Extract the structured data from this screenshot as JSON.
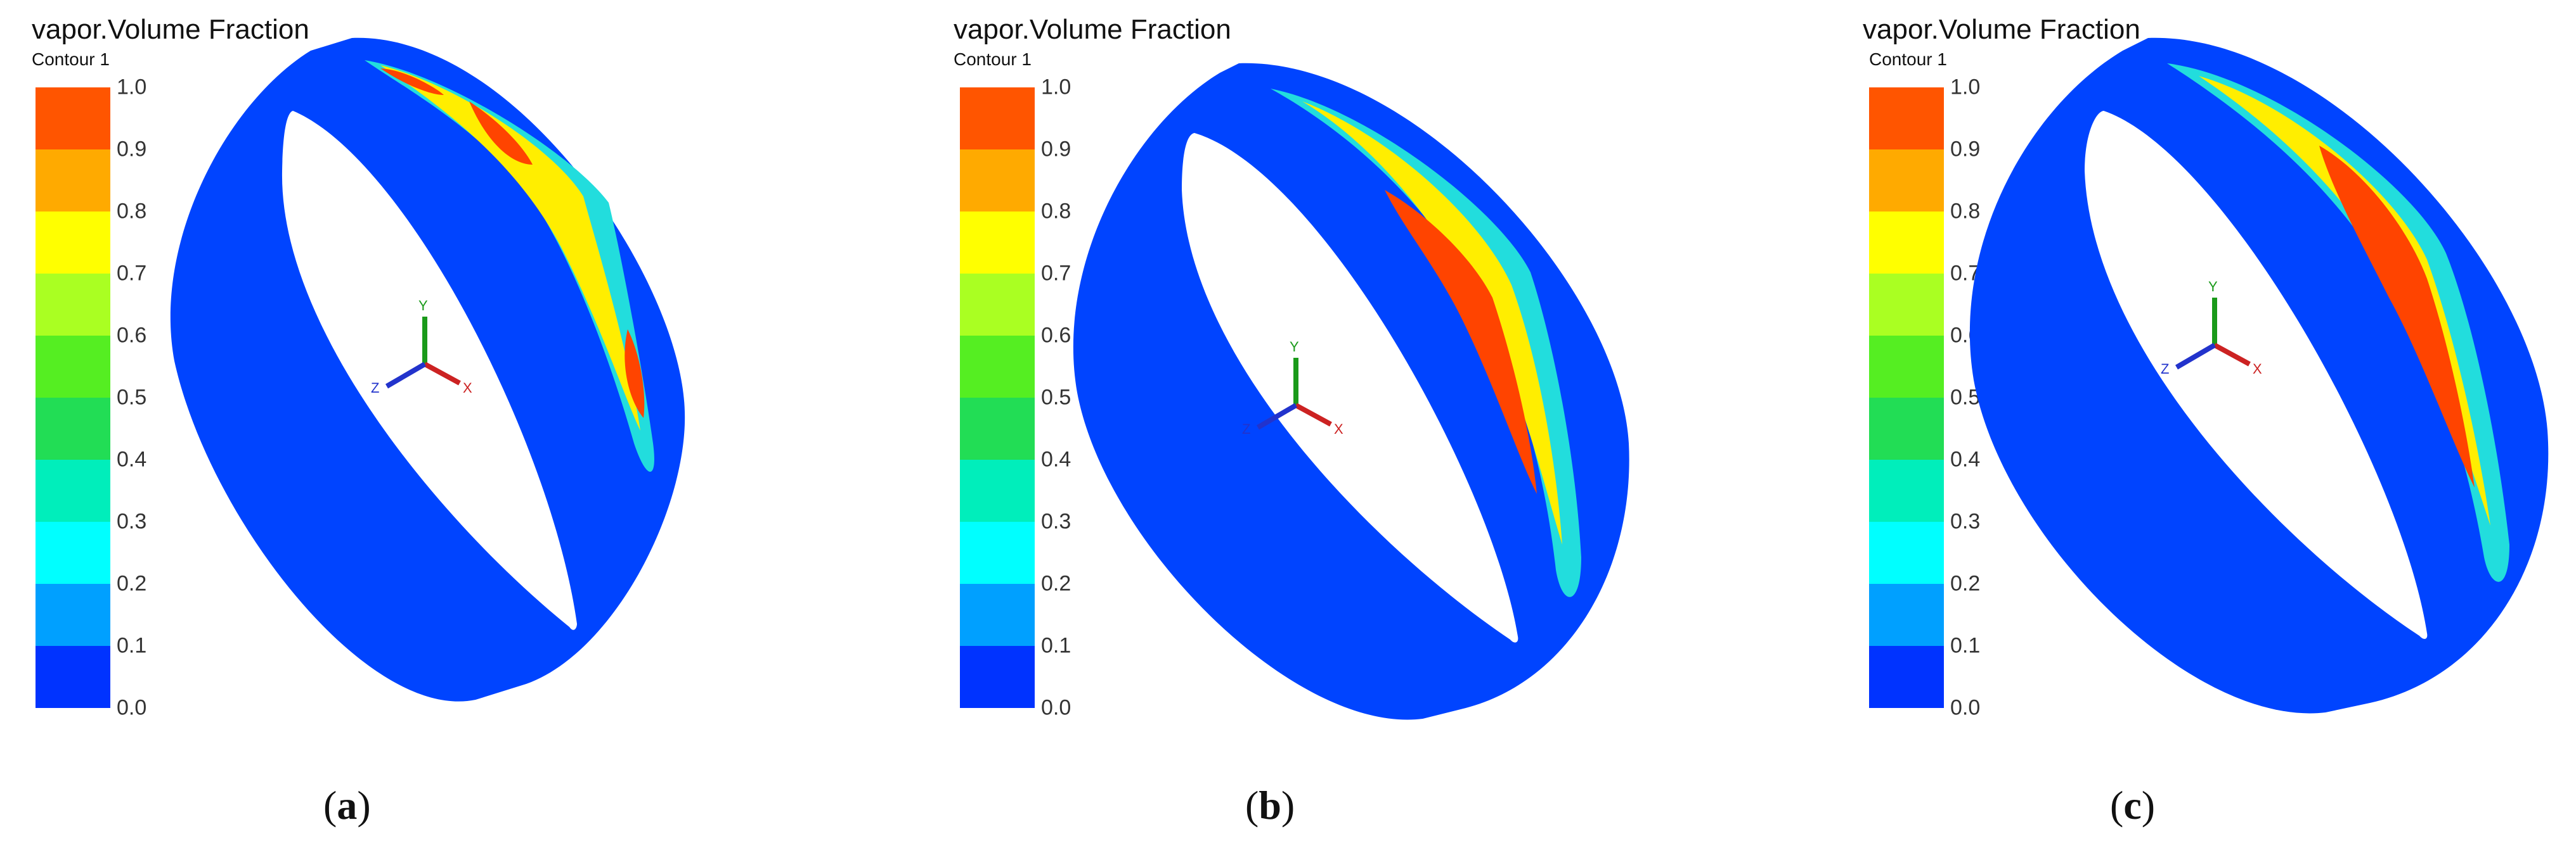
{
  "panels": [
    {
      "id": "a",
      "title": "vapor.Volume Fraction",
      "subtitle": "Contour 1",
      "caption_letter": "a"
    },
    {
      "id": "b",
      "title": "vapor.Volume Fraction",
      "subtitle": "Contour 1",
      "caption_letter": "b"
    },
    {
      "id": "c",
      "title": "vapor.Volume Fraction",
      "subtitle": "Contour 1",
      "caption_letter": "c"
    }
  ],
  "legend": {
    "ticks": [
      "1.0",
      "0.9",
      "0.8",
      "0.7",
      "0.6",
      "0.5",
      "0.4",
      "0.3",
      "0.2",
      "0.1",
      "0.0"
    ],
    "colors": [
      "#0033ff",
      "#00a0ff",
      "#00ffff",
      "#00eebb",
      "#22dd55",
      "#55ee22",
      "#aaff22",
      "#ffff00",
      "#ffaa00",
      "#ff5500"
    ]
  },
  "axes": {
    "x": "X",
    "y": "Y",
    "z": "Z"
  },
  "colors": {
    "ring": "#0044ff",
    "vapor_high": "#ff4400",
    "vapor_mid": "#ffee00",
    "vapor_low": "#22dddd",
    "axis_x": "#cc2222",
    "axis_y": "#1a9a1a",
    "axis_z": "#2233cc"
  }
}
